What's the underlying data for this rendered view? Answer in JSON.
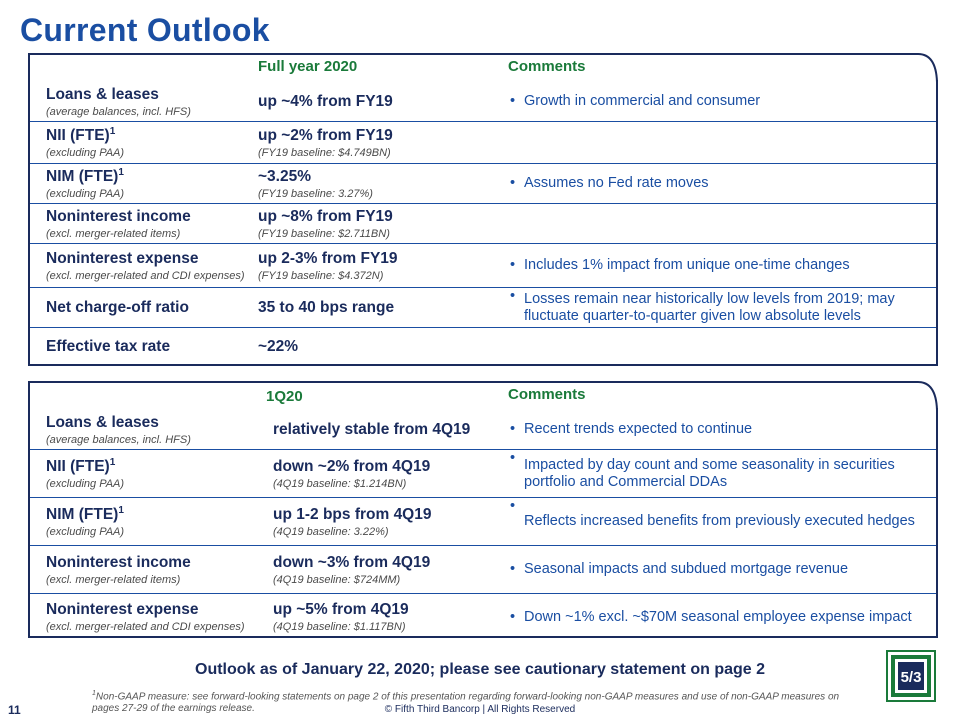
{
  "title": "Current Outlook",
  "panel1": {
    "col_header": "Full year 2020",
    "comments_header": "Comments",
    "rows": [
      {
        "name": "Loans & leases",
        "sup": "",
        "sub": "(average balances, incl. HFS)",
        "value": "up ~4% from FY19",
        "baseline": "",
        "comment": "Growth in commercial and consumer"
      },
      {
        "name": "NII (FTE)",
        "sup": "1",
        "sub": "(excluding PAA)",
        "value": "up ~2% from FY19",
        "baseline": "(FY19 baseline: $4.749BN)",
        "comment": ""
      },
      {
        "name": "NIM (FTE)",
        "sup": "1",
        "sub": "(excluding PAA)",
        "value": "~3.25%",
        "baseline": "(FY19 baseline: 3.27%)",
        "comment": "Assumes no Fed rate moves"
      },
      {
        "name": "Noninterest income",
        "sup": "",
        "sub": "(excl. merger-related items)",
        "value": "up ~8% from FY19",
        "baseline": "(FY19 baseline: $2.711BN)",
        "comment": ""
      },
      {
        "name": "Noninterest expense",
        "sup": "",
        "sub": "(excl. merger-related and CDI expenses)",
        "value": "up 2-3% from FY19",
        "baseline": "(FY19 baseline: $4.372N)",
        "comment": "Includes 1% impact from unique one-time changes"
      },
      {
        "name": "Net charge-off ratio",
        "sup": "",
        "sub": "",
        "value": "35 to 40 bps range",
        "baseline": "",
        "comment": "Losses remain near historically low levels from 2019; may fluctuate quarter-to-quarter given low absolute levels"
      },
      {
        "name": "Effective tax rate",
        "sup": "",
        "sub": "",
        "value": "~22%",
        "baseline": "",
        "comment": ""
      }
    ]
  },
  "panel2": {
    "col_header": "1Q20",
    "comments_header": "Comments",
    "rows": [
      {
        "name": "Loans & leases",
        "sup": "",
        "sub": "(average balances, incl. HFS)",
        "value": "relatively stable from 4Q19",
        "baseline": "",
        "comment": "Recent trends expected to continue"
      },
      {
        "name": "NII (FTE)",
        "sup": "1",
        "sub": "(excluding PAA)",
        "value": "down ~2% from 4Q19",
        "baseline": "(4Q19 baseline: $1.214BN)",
        "comment": "Impacted by day count and some seasonality in securities portfolio and Commercial DDAs"
      },
      {
        "name": "NIM (FTE)",
        "sup": "1",
        "sub": "(excluding PAA)",
        "value": "up 1-2 bps from 4Q19",
        "baseline": "(4Q19 baseline: 3.22%)",
        "comment": "Reflects increased benefits from previously executed hedges"
      },
      {
        "name": "Noninterest income",
        "sup": "",
        "sub": "(excl. merger-related items)",
        "value": "down ~3% from 4Q19",
        "baseline": "(4Q19 baseline: $724MM)",
        "comment": "Seasonal impacts and subdued mortgage revenue"
      },
      {
        "name": "Noninterest expense",
        "sup": "",
        "sub": "(excl. merger-related and CDI expenses)",
        "value": "up ~5% from 4Q19",
        "baseline": "(4Q19 baseline: $1.117BN)",
        "comment": "Down ~1% excl. ~$70M seasonal employee expense impact"
      }
    ]
  },
  "outlook_note": "Outlook as of January 22, 2020; please see cautionary statement on page 2",
  "footnote_sup": "1",
  "footnote": "Non-GAAP measure: see forward-looking statements on page 2 of this presentation regarding forward-looking non-GAAP measures and use of non-GAAP measures on pages 27-29 of the earnings release.",
  "copyright": "© Fifth Third Bancorp | All Rights Reserved",
  "page_number": "11",
  "logo_text": "5/3",
  "colors": {
    "navy": "#1a2b5c",
    "blue": "#1a4ea2",
    "green": "#1a7a3a"
  }
}
